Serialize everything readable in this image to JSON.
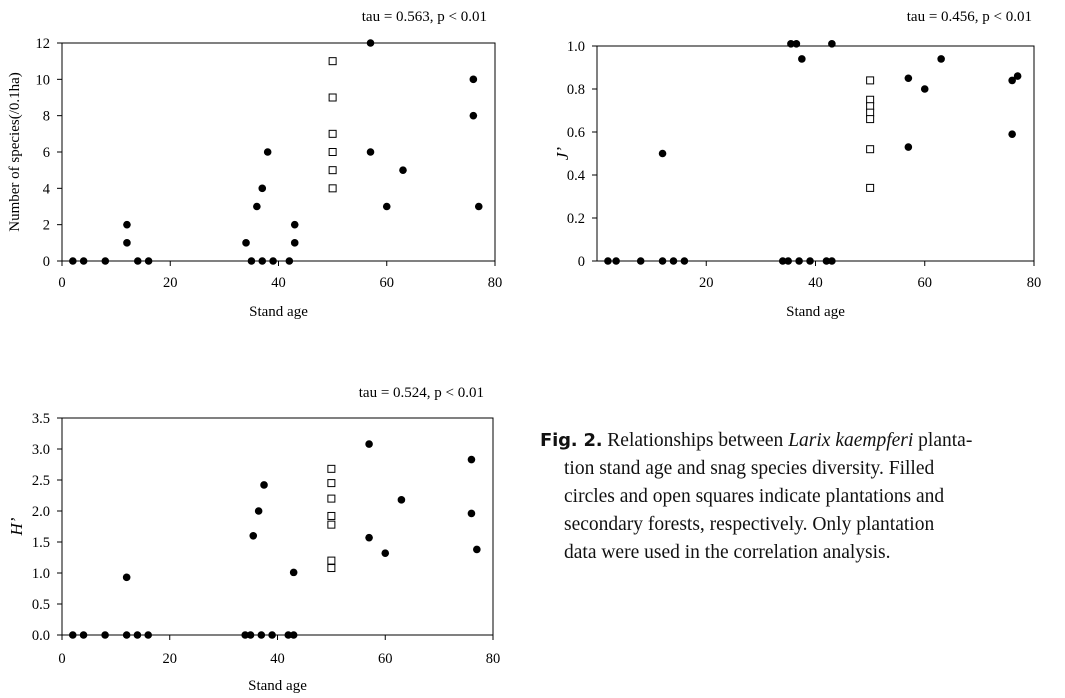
{
  "chart_data": [
    {
      "type": "scatter",
      "annotation": "tau = 0.563, p < 0.01",
      "xlabel": "Stand age",
      "ylabel": "Number of species(/0.1ha)",
      "xlim": [
        0,
        80
      ],
      "ylim": [
        0,
        12
      ],
      "xticks": [
        "0",
        "20",
        "40",
        "60",
        "80"
      ],
      "yticks": [
        "0",
        "2",
        "4",
        "6",
        "8",
        "10",
        "12"
      ],
      "grid": false,
      "series": [
        {
          "marker": "filled-circle",
          "points": [
            [
              2,
              0
            ],
            [
              4,
              0
            ],
            [
              8,
              0
            ],
            [
              12,
              2
            ],
            [
              12,
              1
            ],
            [
              14,
              0
            ],
            [
              16,
              0
            ],
            [
              34,
              1
            ],
            [
              35,
              0
            ],
            [
              36,
              3
            ],
            [
              37,
              4
            ],
            [
              38,
              6
            ],
            [
              37,
              0
            ],
            [
              39,
              0
            ],
            [
              42,
              0
            ],
            [
              43,
              2
            ],
            [
              43,
              1
            ],
            [
              57,
              12
            ],
            [
              57,
              6
            ],
            [
              60,
              3
            ],
            [
              63,
              5
            ],
            [
              76,
              10
            ],
            [
              76,
              8
            ],
            [
              77,
              3
            ]
          ]
        },
        {
          "marker": "open-square",
          "points": [
            [
              50,
              11
            ],
            [
              50,
              9
            ],
            [
              50,
              7
            ],
            [
              50,
              6
            ],
            [
              50,
              5
            ],
            [
              50,
              4
            ]
          ]
        }
      ]
    },
    {
      "type": "scatter",
      "annotation": "tau = 0.456, p < 0.01",
      "xlabel": "Stand age",
      "ylabel": "J’",
      "xlim": [
        0,
        80
      ],
      "ylim": [
        0,
        1.0
      ],
      "xticks": [
        "20",
        "40",
        "60",
        "80"
      ],
      "yticks": [
        "0",
        "0.2",
        "0.4",
        "0.6",
        "0.8",
        "1.0"
      ],
      "grid": false,
      "series": [
        {
          "marker": "filled-circle",
          "points": [
            [
              2,
              0
            ],
            [
              3.5,
              0
            ],
            [
              8,
              0
            ],
            [
              12,
              0.5
            ],
            [
              12,
              0
            ],
            [
              14,
              0
            ],
            [
              16,
              0
            ],
            [
              34,
              0
            ],
            [
              35,
              0
            ],
            [
              37,
              0
            ],
            [
              39,
              0
            ],
            [
              42,
              0
            ],
            [
              43,
              0
            ],
            [
              35.5,
              1.01
            ],
            [
              36.5,
              1.01
            ],
            [
              37.5,
              0.94
            ],
            [
              43,
              1.01
            ],
            [
              57,
              0.85
            ],
            [
              57,
              0.53
            ],
            [
              60,
              0.8
            ],
            [
              63,
              0.94
            ],
            [
              76,
              0.84
            ],
            [
              76,
              0.59
            ],
            [
              77,
              0.86
            ]
          ]
        },
        {
          "marker": "open-square",
          "points": [
            [
              50,
              0.84
            ],
            [
              50,
              0.75
            ],
            [
              50,
              0.72
            ],
            [
              50,
              0.69
            ],
            [
              50,
              0.66
            ],
            [
              50,
              0.52
            ],
            [
              50,
              0.34
            ]
          ]
        }
      ]
    },
    {
      "type": "scatter",
      "annotation": "tau = 0.524, p < 0.01",
      "xlabel": "Stand age",
      "ylabel": "H’",
      "xlim": [
        0,
        80
      ],
      "ylim": [
        0,
        3.5
      ],
      "xticks": [
        "0",
        "20",
        "40",
        "60",
        "80"
      ],
      "yticks": [
        "0.0",
        "0.5",
        "1.0",
        "1.5",
        "2.0",
        "2.5",
        "3.0",
        "3.5"
      ],
      "grid": false,
      "series": [
        {
          "marker": "filled-circle",
          "points": [
            [
              2,
              0
            ],
            [
              4,
              0
            ],
            [
              8,
              0
            ],
            [
              12,
              0.93
            ],
            [
              12,
              0
            ],
            [
              14,
              0
            ],
            [
              16,
              0
            ],
            [
              34,
              0
            ],
            [
              35,
              0
            ],
            [
              35.5,
              1.6
            ],
            [
              36.5,
              2.0
            ],
            [
              37,
              0
            ],
            [
              37.5,
              2.42
            ],
            [
              39,
              0
            ],
            [
              42,
              0
            ],
            [
              43,
              0
            ],
            [
              43,
              1.01
            ],
            [
              57,
              3.08
            ],
            [
              57,
              1.57
            ],
            [
              60,
              1.32
            ],
            [
              63,
              2.18
            ],
            [
              76,
              2.83
            ],
            [
              76,
              1.96
            ],
            [
              77,
              1.38
            ]
          ]
        },
        {
          "marker": "open-square",
          "points": [
            [
              50,
              2.68
            ],
            [
              50,
              2.45
            ],
            [
              50,
              2.2
            ],
            [
              50,
              1.92
            ],
            [
              50,
              1.78
            ],
            [
              50,
              1.2
            ],
            [
              50,
              1.08
            ]
          ]
        }
      ]
    }
  ],
  "caption": {
    "label": "Fig. 2.",
    "text_before": "Relationships between",
    "species": "Larix kaempferi",
    "line1_tail": "planta-",
    "rest_lines": [
      "tion stand age and snag species diversity. Filled",
      "circles and open squares indicate plantations and",
      "secondary forests, respectively. Only plantation",
      "data were used in the correlation analysis."
    ]
  }
}
